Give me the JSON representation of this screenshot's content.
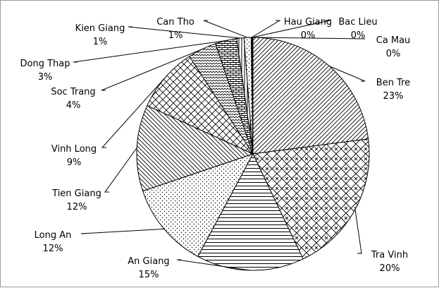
{
  "chart_data": {
    "type": "pie",
    "title": "",
    "slices": [
      {
        "name": "Ben Tre",
        "value": 23,
        "label": "23%",
        "pattern": "diag-right"
      },
      {
        "name": "Tra Vinh",
        "value": 20,
        "label": "20%",
        "pattern": "diamond"
      },
      {
        "name": "An Giang",
        "value": 15,
        "label": "15%",
        "pattern": "horizontal"
      },
      {
        "name": "Long An",
        "value": 12,
        "label": "12%",
        "pattern": "dots"
      },
      {
        "name": "Tien Giang",
        "value": 12,
        "label": "12%",
        "pattern": "diag-left"
      },
      {
        "name": "Vinh Long",
        "value": 9,
        "label": "9%",
        "pattern": "cross"
      },
      {
        "name": "Soc Trang",
        "value": 4,
        "label": "4%",
        "pattern": "zigzag"
      },
      {
        "name": "Dong Thap",
        "value": 3,
        "label": "3%",
        "pattern": "brick"
      },
      {
        "name": "Kien Giang",
        "value": 1,
        "label": "1%",
        "pattern": "vertical"
      },
      {
        "name": "Can Tho",
        "value": 1,
        "label": "1%",
        "pattern": "dots"
      },
      {
        "name": "Hau Giang",
        "value": 0,
        "label": "0%",
        "pattern": "solid"
      },
      {
        "name": "Bac Lieu",
        "value": 0,
        "label": "0%",
        "pattern": "solid"
      },
      {
        "name": "Ca Mau",
        "value": 0,
        "label": "0%",
        "pattern": "solid"
      }
    ],
    "legend": "none"
  }
}
